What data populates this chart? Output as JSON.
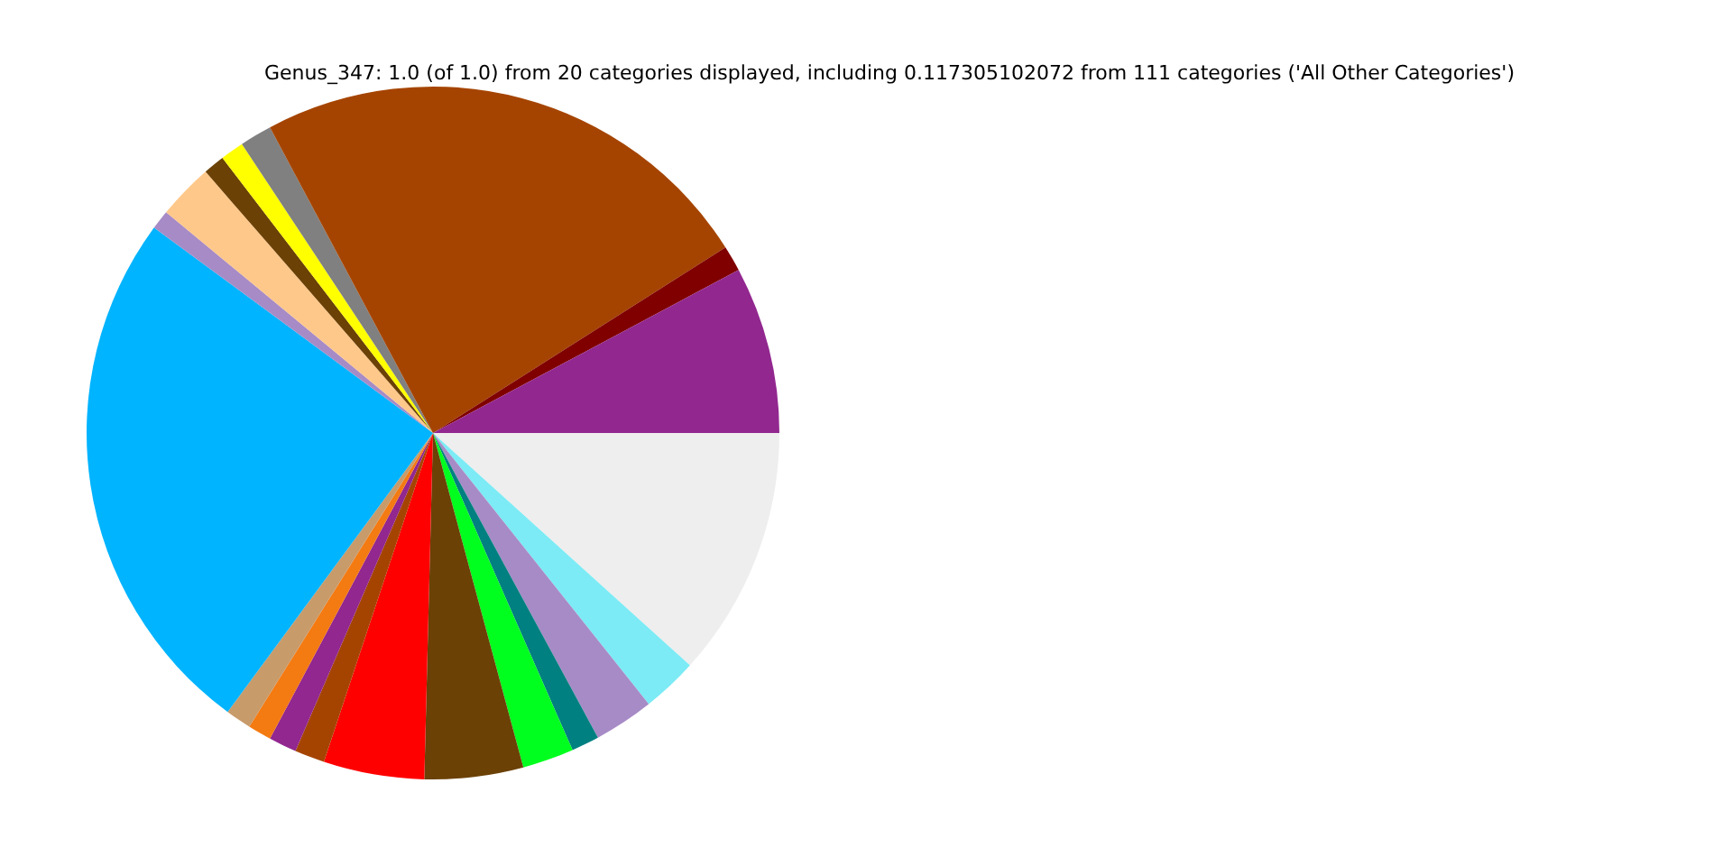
{
  "chart_data": {
    "type": "pie",
    "title": "Genus_347: 1.0 (of 1.0) from 20 categories displayed, including 0.117305102072 from 111 categories ('All Other Categories')",
    "categories": [
      null,
      null,
      null,
      null,
      null,
      null,
      null,
      null,
      null,
      null,
      null,
      null,
      null,
      null,
      null,
      null,
      null,
      null,
      null,
      null
    ],
    "values": [
      7.8,
      1.2,
      23.8,
      1.5,
      1.1,
      1.0,
      2.6,
      0.9,
      25.0,
      1.2,
      1.1,
      1.3,
      1.4,
      4.7,
      4.6,
      2.4,
      1.3,
      2.8,
      2.6,
      11.7
    ],
    "colors": [
      "#92278f",
      "#800000",
      "#a54400",
      "#808080",
      "#ffff00",
      "#6b4106",
      "#ffc88b",
      "#a78bc6",
      "#00b4ff",
      "#c89b6b",
      "#f47a12",
      "#92278f",
      "#a54400",
      "#ff0000",
      "#6b4106",
      "#00ff1e",
      "#008080",
      "#a78bc6",
      "#7cebf5",
      "#eeeeee"
    ],
    "legend": false
  }
}
